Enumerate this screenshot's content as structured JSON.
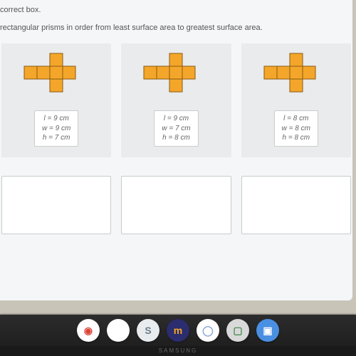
{
  "instructions": {
    "line1": "correct box.",
    "line2": "rectangular prisms in order from least surface area to greatest surface area."
  },
  "prisms": [
    {
      "l": "9 cm",
      "w": "9 cm",
      "h": "7 cm"
    },
    {
      "l": "9 cm",
      "w": "7 cm",
      "h": "8 cm"
    },
    {
      "l": "8 cm",
      "w": "8 cm",
      "h": "8 cm"
    }
  ],
  "net_style": {
    "fill": "#f4a62a",
    "stroke": "#8a5a10",
    "stroke_width": 1,
    "cell": 18
  },
  "card_bg": "#e9ebec",
  "dropzones": 3,
  "taskbar": {
    "icons": [
      {
        "name": "chrome-icon",
        "bg": "#ffffff",
        "fg": "#db4437",
        "glyph": "◉"
      },
      {
        "name": "circle-icon",
        "bg": "#ffffff",
        "fg": "#d5d5d5",
        "glyph": ""
      },
      {
        "name": "s-icon",
        "bg": "#e9ecef",
        "fg": "#6b7d8a",
        "glyph": "S"
      },
      {
        "name": "m-icon",
        "bg": "#2b2d6e",
        "fg": "#f5a623",
        "glyph": "m"
      },
      {
        "name": "ring-icon",
        "bg": "#ffffff",
        "fg": "#8aa7d8",
        "glyph": "◯"
      },
      {
        "name": "square-icon",
        "bg": "#d9d9d9",
        "fg": "#4a8f57",
        "glyph": "▢"
      },
      {
        "name": "video-icon",
        "bg": "#4a90e2",
        "fg": "#ffffff",
        "glyph": "▣"
      }
    ]
  },
  "brand_text": "SAMSUNG"
}
